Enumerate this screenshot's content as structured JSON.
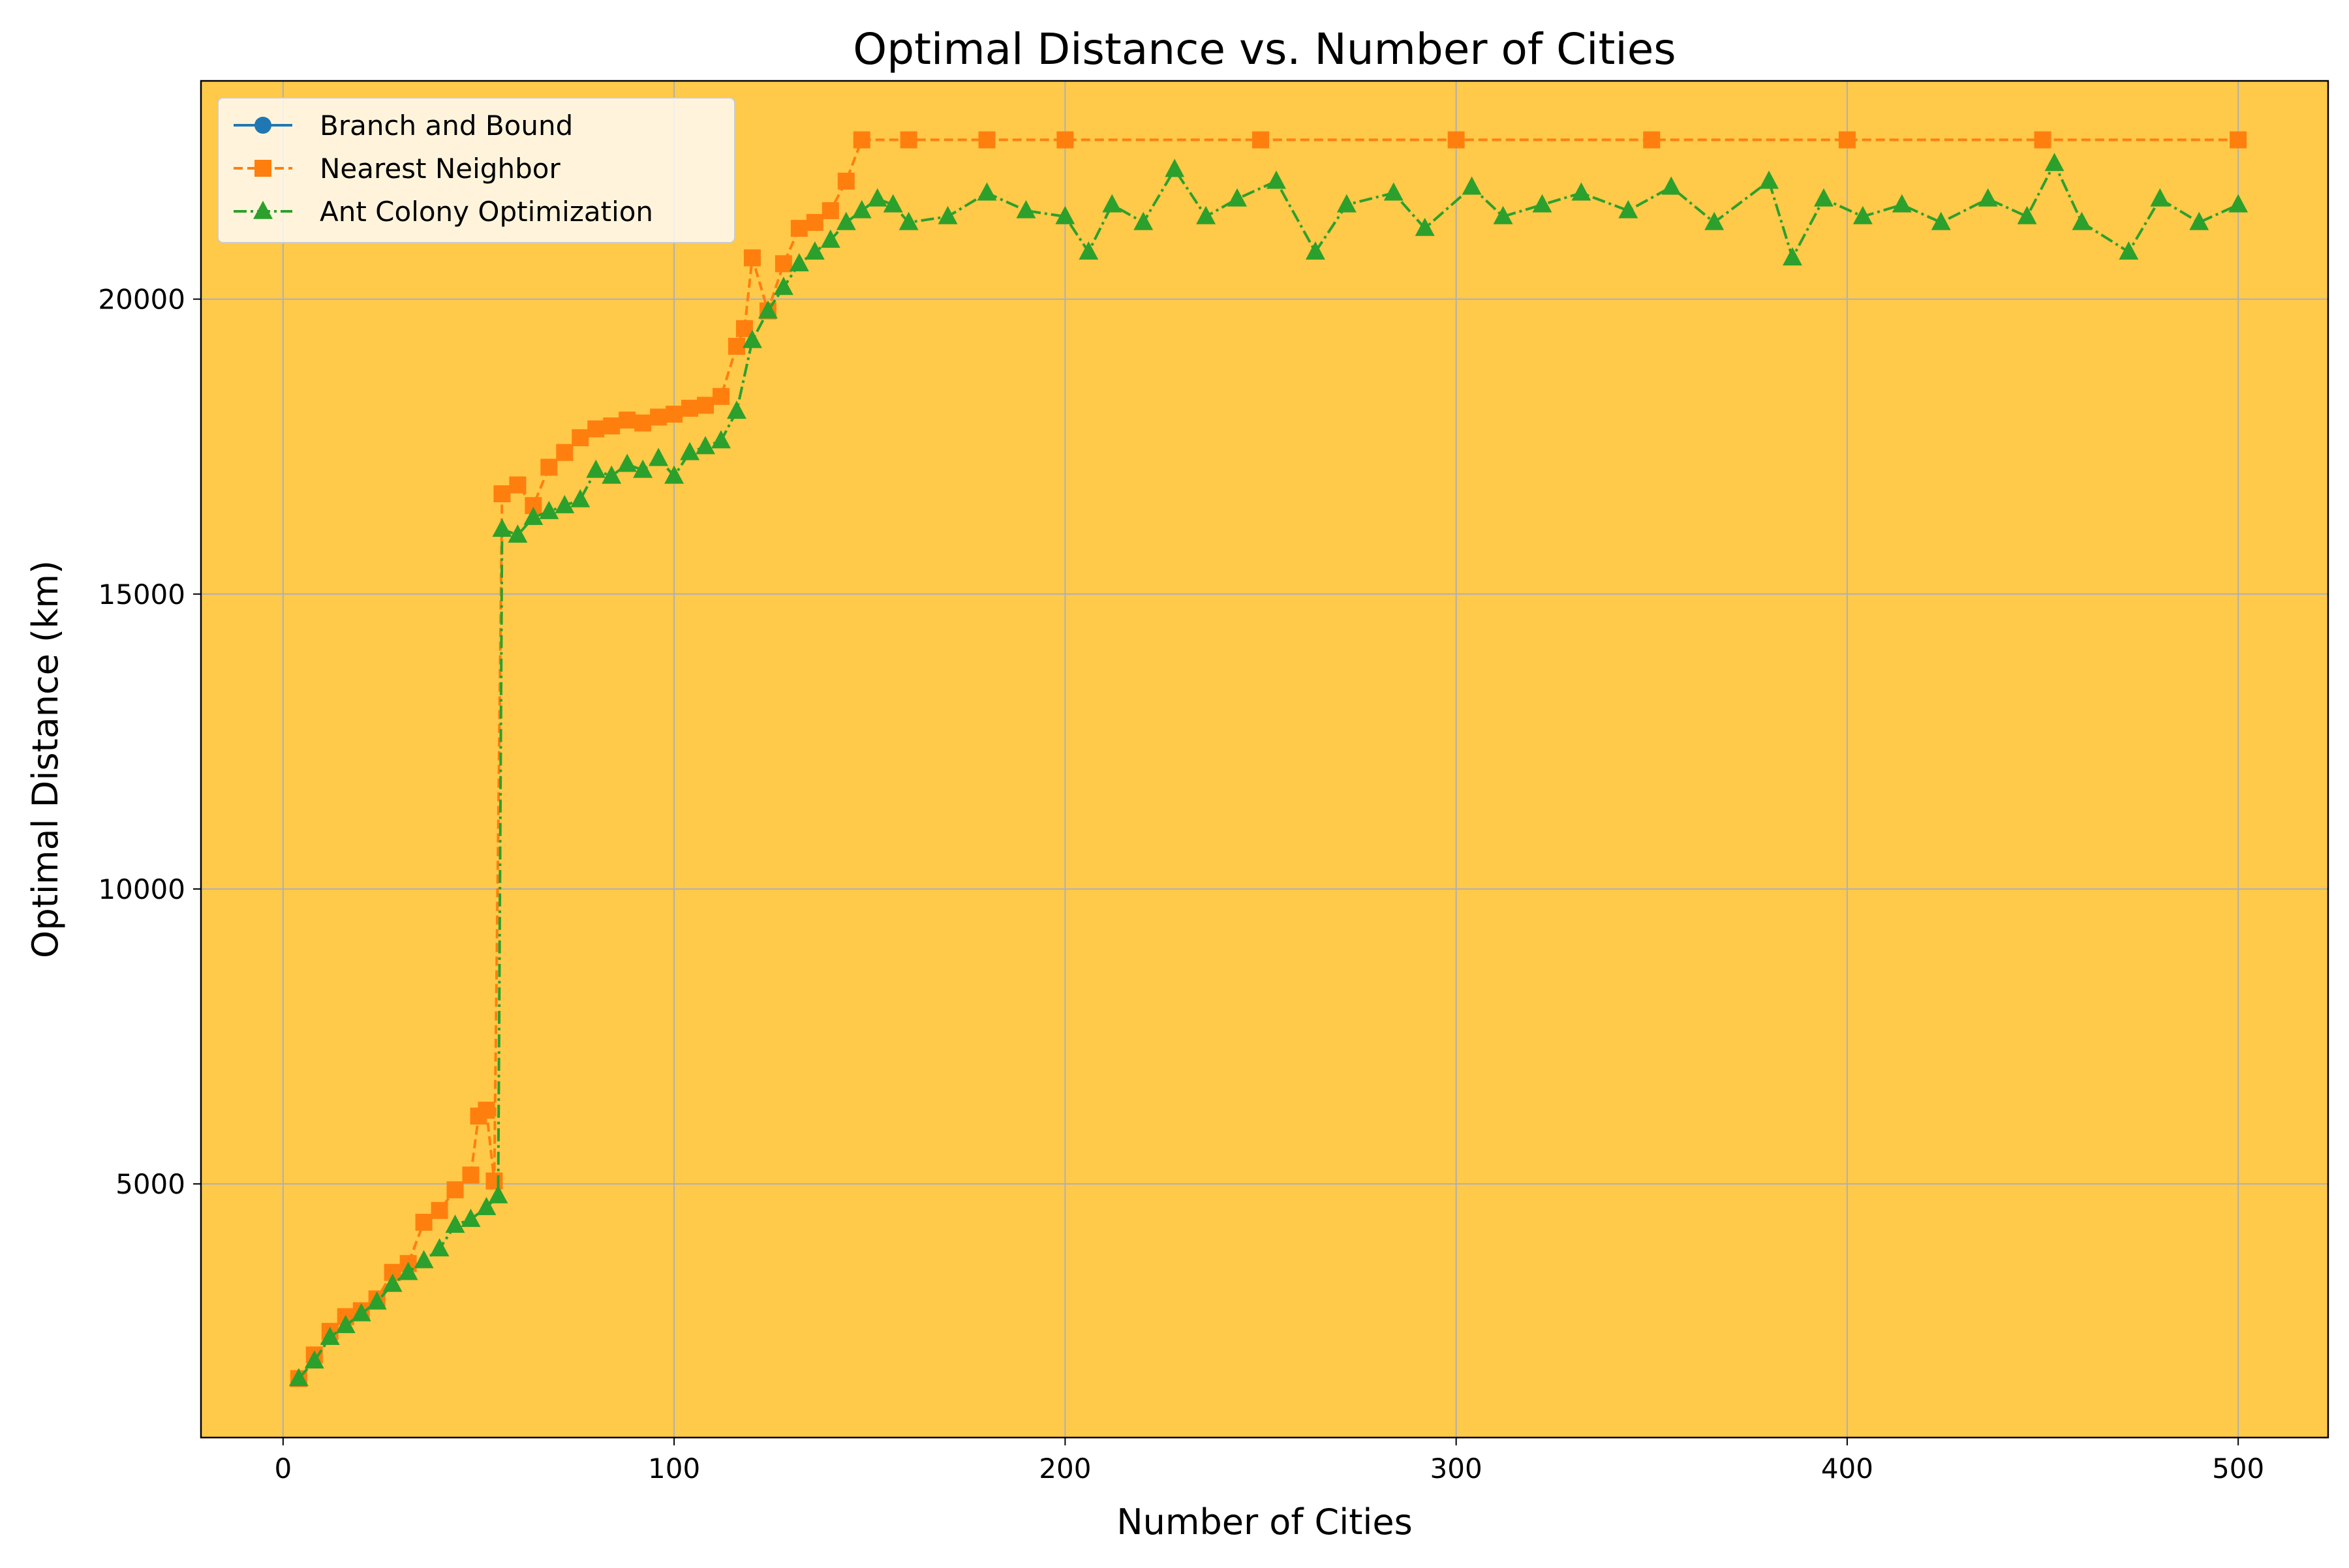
{
  "chart_data": {
    "type": "line",
    "title": "Optimal Distance vs. Number of Cities",
    "xlabel": "Number of Cities",
    "ylabel": "Optimal Distance (km)",
    "xlim": [
      -21,
      523
    ],
    "ylim": [
      700,
      23700
    ],
    "xticks": [
      0,
      100,
      200,
      300,
      400,
      500
    ],
    "yticks": [
      5000,
      10000,
      15000,
      20000
    ],
    "grid": true,
    "legend_position": "top-left",
    "background_color": "#ffc94a",
    "series": [
      {
        "name": "Branch and Bound",
        "color": "#1f77b4",
        "line_style": "solid",
        "marker": "circle",
        "x": [],
        "y": []
      },
      {
        "name": "Nearest Neighbor",
        "color": "#ff7f0e",
        "line_style": "dashed",
        "marker": "square",
        "x": [
          4,
          8,
          12,
          16,
          20,
          24,
          28,
          32,
          36,
          40,
          44,
          48,
          50,
          52,
          54,
          56,
          60,
          64,
          68,
          72,
          76,
          80,
          84,
          88,
          92,
          96,
          100,
          104,
          108,
          112,
          116,
          118,
          120,
          124,
          128,
          132,
          136,
          140,
          144,
          148,
          160,
          180,
          200,
          250,
          300,
          350,
          400,
          450,
          500
        ],
        "y": [
          1700,
          2100,
          2500,
          2750,
          2850,
          3050,
          3500,
          3650,
          4350,
          4550,
          4900,
          5150,
          6150,
          6250,
          5050,
          16700,
          16850,
          16500,
          17150,
          17400,
          17650,
          17800,
          17850,
          17950,
          17900,
          18000,
          18050,
          18150,
          18200,
          18350,
          19200,
          19500,
          20700,
          19800,
          20600,
          21200,
          21300,
          21500,
          22000,
          22700,
          22700,
          22700,
          22700,
          22700,
          22700,
          22700,
          22700,
          22700,
          22700
        ]
      },
      {
        "name": "Ant Colony Optimization",
        "color": "#2ca02c",
        "line_style": "dashdot",
        "marker": "triangle",
        "x": [
          4,
          8,
          12,
          16,
          20,
          24,
          28,
          32,
          36,
          40,
          44,
          48,
          52,
          55,
          56,
          60,
          64,
          68,
          72,
          76,
          80,
          84,
          88,
          92,
          96,
          100,
          104,
          108,
          112,
          116,
          120,
          124,
          128,
          132,
          136,
          140,
          144,
          148,
          152,
          156,
          160,
          170,
          180,
          190,
          200,
          206,
          212,
          220,
          228,
          236,
          244,
          254,
          264,
          272,
          284,
          292,
          304,
          312,
          322,
          332,
          344,
          355,
          366,
          380,
          386,
          394,
          404,
          414,
          424,
          436,
          446,
          453,
          460,
          472,
          480,
          490,
          500
        ],
        "y": [
          1700,
          2000,
          2400,
          2600,
          2800,
          3000,
          3300,
          3500,
          3700,
          3900,
          4300,
          4400,
          4600,
          4800,
          16100,
          16000,
          16300,
          16400,
          16500,
          16600,
          17100,
          17000,
          17200,
          17100,
          17300,
          17000,
          17400,
          17500,
          17600,
          18100,
          19300,
          19800,
          20200,
          20600,
          20800,
          21000,
          21300,
          21500,
          21700,
          21600,
          21300,
          21400,
          21800,
          21500,
          21400,
          20800,
          21600,
          21300,
          22200,
          21400,
          21700,
          22000,
          20800,
          21600,
          21800,
          21200,
          21900,
          21400,
          21600,
          21800,
          21500,
          21900,
          21300,
          22000,
          20700,
          21700,
          21400,
          21600,
          21300,
          21700,
          21400,
          22300,
          21300,
          20800,
          21700,
          21300,
          21600
        ]
      }
    ]
  }
}
